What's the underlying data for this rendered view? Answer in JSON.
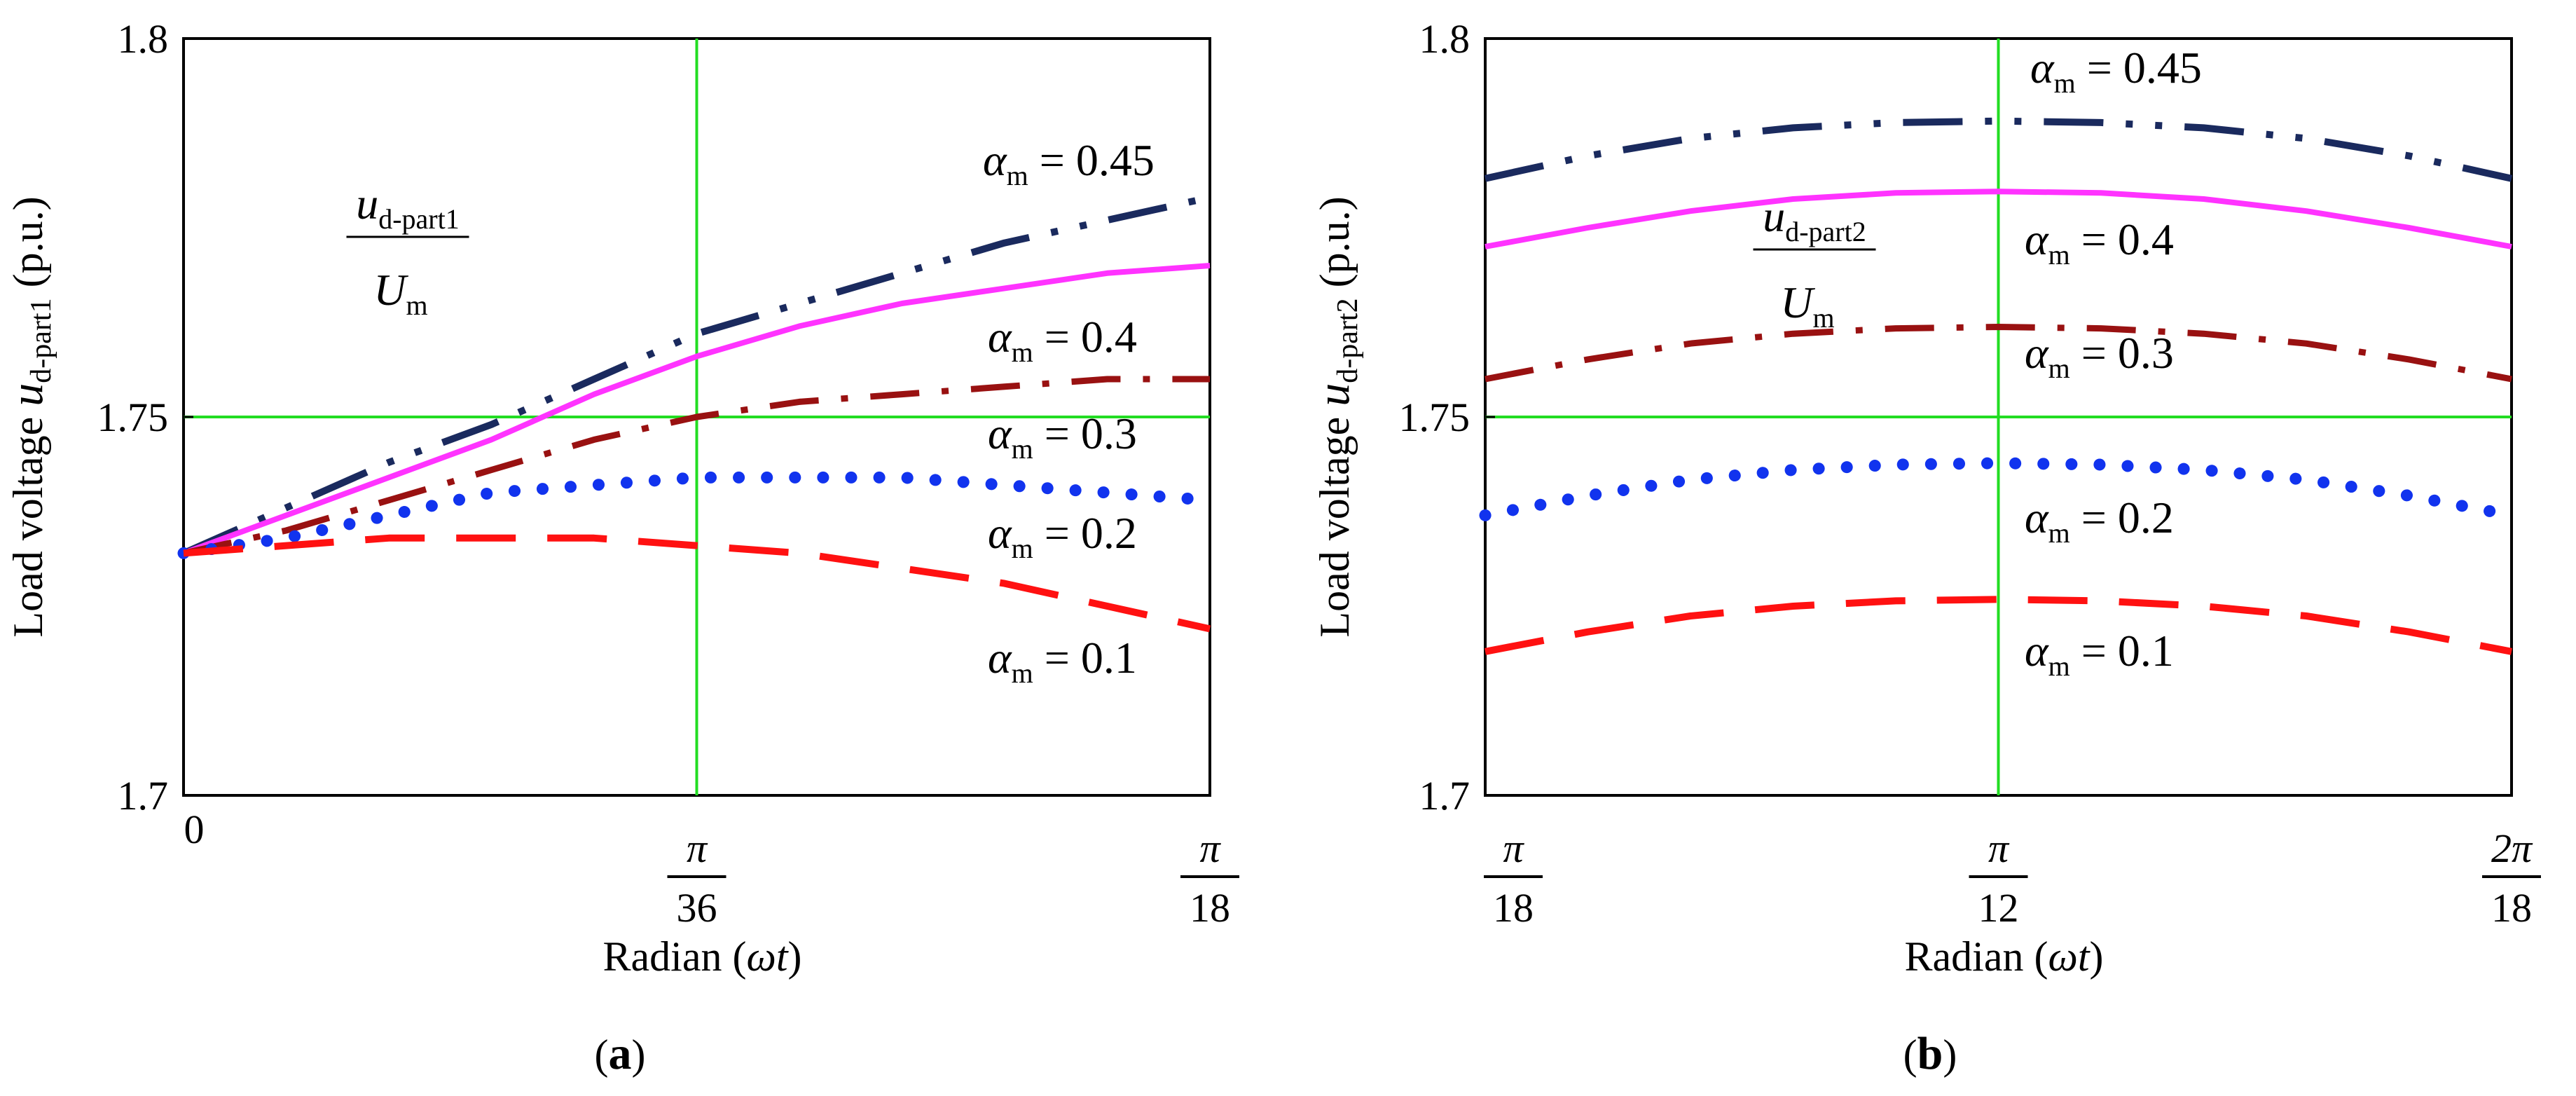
{
  "chart_data": [
    {
      "type": "line",
      "panel": "(a)",
      "panel_letter": "a",
      "ylabel": "Load voltage u_d-part1 (p.u.)",
      "ylabel_parts": {
        "prefix": "Load voltage ",
        "var": "u",
        "sub": "d-part1",
        "suffix": " (p.u.)"
      },
      "xlabel": "Radian (ωt)",
      "xlabel_parts": {
        "prefix": "Radian (",
        "var": "ωt",
        "suffix": ")"
      },
      "annotation": {
        "num": "u",
        "num_sub": "d-part1",
        "den": "U",
        "den_sub": "m"
      },
      "xlim": [
        0,
        10
      ],
      "ylim": [
        1.7,
        1.8
      ],
      "x_unit": "degrees (ωt)",
      "xticks": [
        {
          "value": 0,
          "label": "0",
          "num": "",
          "den": ""
        },
        {
          "value": 5,
          "label": "π/36",
          "num": "π",
          "den": "36"
        },
        {
          "value": 10,
          "label": "π/18",
          "num": "π",
          "den": "18"
        }
      ],
      "yticks": [
        {
          "value": 1.7,
          "label": "1.7"
        },
        {
          "value": 1.75,
          "label": "1.75"
        },
        {
          "value": 1.8,
          "label": "1.8"
        }
      ],
      "gridlines": {
        "x": [
          5
        ],
        "y": [
          1.75
        ],
        "color": "#22dd22"
      },
      "series": [
        {
          "name": "α_m = 0.45",
          "label_var": "α",
          "label_sub": "m",
          "label_value": " = 0.45",
          "color": "#1a2a5e",
          "style": "dashdotdot",
          "x": [
            0,
            1,
            2,
            3,
            4,
            5,
            6,
            7,
            8,
            9,
            10
          ],
          "values": [
            1.732,
            1.738,
            1.744,
            1.749,
            1.755,
            1.761,
            1.765,
            1.769,
            1.773,
            1.776,
            1.779
          ]
        },
        {
          "name": "α_m = 0.4",
          "label_var": "α",
          "label_sub": "m",
          "label_value": " = 0.4",
          "color": "#ff33ff",
          "style": "solid",
          "x": [
            0,
            1,
            2,
            3,
            4,
            5,
            6,
            7,
            8,
            9,
            10
          ],
          "values": [
            1.732,
            1.737,
            1.742,
            1.747,
            1.753,
            1.758,
            1.762,
            1.765,
            1.767,
            1.769,
            1.77
          ]
        },
        {
          "name": "α_m = 0.3",
          "label_var": "α",
          "label_sub": "m",
          "label_value": " = 0.3",
          "color": "#991111",
          "style": "dashdot",
          "x": [
            0,
            1,
            2,
            3,
            4,
            5,
            6,
            7,
            8,
            9,
            10
          ],
          "values": [
            1.732,
            1.735,
            1.739,
            1.743,
            1.747,
            1.75,
            1.752,
            1.753,
            1.754,
            1.755,
            1.755
          ]
        },
        {
          "name": "α_m = 0.2",
          "label_var": "α",
          "label_sub": "m",
          "label_value": " = 0.2",
          "color": "#1133ee",
          "style": "dotted",
          "x": [
            0,
            1,
            2,
            3,
            4,
            5,
            6,
            7,
            8,
            9,
            10
          ],
          "values": [
            1.732,
            1.734,
            1.737,
            1.74,
            1.741,
            1.742,
            1.742,
            1.742,
            1.741,
            1.74,
            1.739
          ]
        },
        {
          "name": "α_m = 0.1",
          "label_var": "α",
          "label_sub": "m",
          "label_value": " = 0.1",
          "color": "#ff1111",
          "style": "dashed",
          "x": [
            0,
            1,
            2,
            3,
            4,
            5,
            6,
            7,
            8,
            9,
            10
          ],
          "values": [
            1.732,
            1.733,
            1.734,
            1.734,
            1.734,
            1.733,
            1.732,
            1.73,
            1.728,
            1.725,
            1.722
          ]
        }
      ]
    },
    {
      "type": "line",
      "panel": "(b)",
      "panel_letter": "b",
      "ylabel": "Load voltage u_d-part2 (p.u.)",
      "ylabel_parts": {
        "prefix": "Load voltage ",
        "var": "u",
        "sub": "d-part2",
        "suffix": " (p.u.)"
      },
      "xlabel": "Radian (ωt)",
      "xlabel_parts": {
        "prefix": "Radian (",
        "var": "ωt",
        "suffix": ")"
      },
      "annotation": {
        "num": "u",
        "num_sub": "d-part2",
        "den": "U",
        "den_sub": "m"
      },
      "xlim": [
        10,
        20
      ],
      "ylim": [
        1.7,
        1.8
      ],
      "x_unit": "degrees (ωt)",
      "xticks": [
        {
          "value": 10,
          "label": "π/18",
          "num": "π",
          "den": "18"
        },
        {
          "value": 15,
          "label": "π/12",
          "num": "π",
          "den": "12"
        },
        {
          "value": 20,
          "label": "2π/18",
          "num": "2π",
          "den": "18"
        }
      ],
      "yticks": [
        {
          "value": 1.7,
          "label": "1.7"
        },
        {
          "value": 1.75,
          "label": "1.75"
        },
        {
          "value": 1.8,
          "label": "1.8"
        }
      ],
      "gridlines": {
        "x": [
          15
        ],
        "y": [
          1.75
        ],
        "color": "#22dd22"
      },
      "series": [
        {
          "name": "α_m = 0.45",
          "label_var": "α",
          "label_sub": "m",
          "label_value": " = 0.45",
          "color": "#1a2a5e",
          "style": "dashdotdot",
          "x": [
            10,
            11,
            12,
            13,
            14,
            15,
            16,
            17,
            18,
            19,
            20
          ],
          "values": [
            1.7815,
            1.7845,
            1.7868,
            1.7882,
            1.7889,
            1.7891,
            1.7889,
            1.7882,
            1.7868,
            1.7845,
            1.7815
          ]
        },
        {
          "name": "α_m = 0.4",
          "label_var": "α",
          "label_sub": "m",
          "label_value": " = 0.4",
          "color": "#ff33ff",
          "style": "solid",
          "x": [
            10,
            11,
            12,
            13,
            14,
            15,
            16,
            17,
            18,
            19,
            20
          ],
          "values": [
            1.7725,
            1.775,
            1.7772,
            1.7788,
            1.7796,
            1.7798,
            1.7796,
            1.7788,
            1.7772,
            1.775,
            1.7725
          ]
        },
        {
          "name": "α_m = 0.3",
          "label_var": "α",
          "label_sub": "m",
          "label_value": " = 0.3",
          "color": "#991111",
          "style": "dashdot",
          "x": [
            10,
            11,
            12,
            13,
            14,
            15,
            16,
            17,
            18,
            19,
            20
          ],
          "values": [
            1.755,
            1.7576,
            1.7597,
            1.761,
            1.7617,
            1.7619,
            1.7617,
            1.761,
            1.7597,
            1.7576,
            1.755
          ]
        },
        {
          "name": "α_m = 0.2",
          "label_var": "α",
          "label_sub": "m",
          "label_value": " = 0.2",
          "color": "#1133ee",
          "style": "dotted",
          "x": [
            10,
            11,
            12,
            13,
            14,
            15,
            16,
            17,
            18,
            19,
            20
          ],
          "values": [
            1.737,
            1.7396,
            1.7417,
            1.743,
            1.7437,
            1.7439,
            1.7437,
            1.743,
            1.7417,
            1.7396,
            1.737
          ]
        },
        {
          "name": "α_m = 0.1",
          "label_var": "α",
          "label_sub": "m",
          "label_value": " = 0.1",
          "color": "#ff1111",
          "style": "dashed",
          "x": [
            10,
            11,
            12,
            13,
            14,
            15,
            16,
            17,
            18,
            19,
            20
          ],
          "values": [
            1.719,
            1.7216,
            1.7237,
            1.725,
            1.7257,
            1.7259,
            1.7257,
            1.725,
            1.7237,
            1.7216,
            1.719
          ]
        }
      ]
    }
  ]
}
